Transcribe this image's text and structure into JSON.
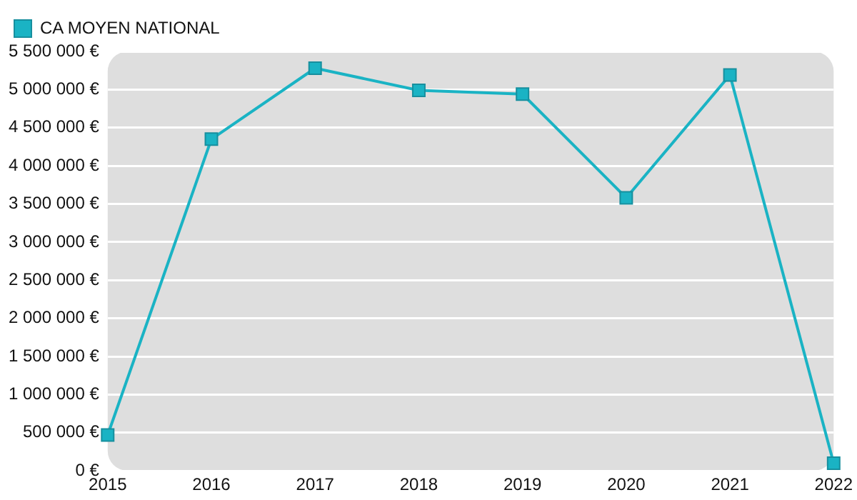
{
  "chart_data": {
    "type": "line",
    "categories": [
      "2015",
      "2016",
      "2017",
      "2018",
      "2019",
      "2020",
      "2021",
      "2022"
    ],
    "series": [
      {
        "name": "CA MOYEN NATIONAL",
        "color": "#1ab3c4",
        "values": [
          470000,
          4350000,
          5280000,
          4990000,
          4940000,
          3580000,
          5190000,
          100000
        ]
      }
    ],
    "ylim": [
      0,
      5500000
    ],
    "yticks": [
      {
        "value": 0,
        "label": "0 €"
      },
      {
        "value": 500000,
        "label": "500 000 €"
      },
      {
        "value": 1000000,
        "label": "1 000 000 €"
      },
      {
        "value": 1500000,
        "label": "1 500 000 €"
      },
      {
        "value": 2000000,
        "label": "2 000 000 €"
      },
      {
        "value": 2500000,
        "label": "2 500 000 €"
      },
      {
        "value": 3000000,
        "label": "3 000 000 €"
      },
      {
        "value": 3500000,
        "label": "3 500 000 €"
      },
      {
        "value": 4000000,
        "label": "4 000 000 €"
      },
      {
        "value": 4500000,
        "label": "4 500 000 €"
      },
      {
        "value": 5000000,
        "label": "5 000 000 €"
      },
      {
        "value": 5500000,
        "label": "5 500 000 €"
      }
    ],
    "grid": "y",
    "legend": "top left",
    "marker": "square",
    "line_style": "solid"
  }
}
